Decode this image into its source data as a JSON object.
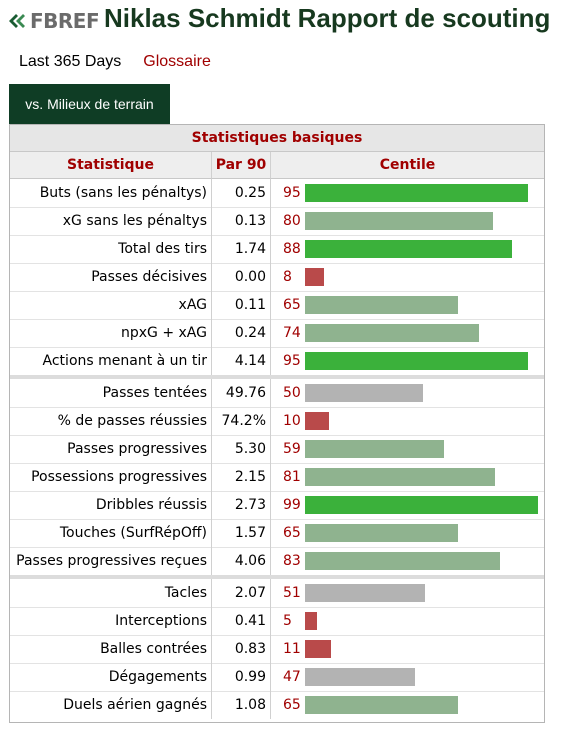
{
  "header": {
    "logo_text": "FBREF",
    "title": "Niklas Schmidt Rapport de scouting"
  },
  "filters": {
    "period": "Last 365 Days",
    "glossary": "Glossaire"
  },
  "tabs": [
    {
      "label": "vs. Milieux de terrain",
      "active": true
    }
  ],
  "table": {
    "section_title": "Statistiques basiques",
    "columns": {
      "stat": "Statistique",
      "per90": "Par 90",
      "percentile": "Centile"
    },
    "colors": {
      "high": "#3bb13b",
      "mid": "#8fb38f",
      "neutral": "#b3b3b3",
      "low": "#b94a4a"
    },
    "groups": [
      [
        {
          "label": "Buts (sans les pénaltys)",
          "per90": "0.25",
          "pct": "95",
          "level": "high"
        },
        {
          "label": "xG sans les pénaltys",
          "per90": "0.13",
          "pct": "80",
          "level": "mid"
        },
        {
          "label": "Total des tirs",
          "per90": "1.74",
          "pct": "88",
          "level": "high"
        },
        {
          "label": "Passes décisives",
          "per90": "0.00",
          "pct": "8",
          "level": "low"
        },
        {
          "label": "xAG",
          "per90": "0.11",
          "pct": "65",
          "level": "mid"
        },
        {
          "label": "npxG + xAG",
          "per90": "0.24",
          "pct": "74",
          "level": "mid"
        },
        {
          "label": "Actions menant à un tir",
          "per90": "4.14",
          "pct": "95",
          "level": "high"
        }
      ],
      [
        {
          "label": "Passes tentées",
          "per90": "49.76",
          "pct": "50",
          "level": "neutral"
        },
        {
          "label": "% de passes réussies",
          "per90": "74.2%",
          "pct": "10",
          "level": "low"
        },
        {
          "label": "Passes progressives",
          "per90": "5.30",
          "pct": "59",
          "level": "mid"
        },
        {
          "label": "Possessions progressives",
          "per90": "2.15",
          "pct": "81",
          "level": "mid"
        },
        {
          "label": "Dribbles réussis",
          "per90": "2.73",
          "pct": "99",
          "level": "high"
        },
        {
          "label": "Touches (SurfRépOff)",
          "per90": "1.57",
          "pct": "65",
          "level": "mid"
        },
        {
          "label": "Passes progressives reçues",
          "per90": "4.06",
          "pct": "83",
          "level": "mid"
        }
      ],
      [
        {
          "label": "Tacles",
          "per90": "2.07",
          "pct": "51",
          "level": "neutral"
        },
        {
          "label": "Interceptions",
          "per90": "0.41",
          "pct": "5",
          "level": "low"
        },
        {
          "label": "Balles contrées",
          "per90": "0.83",
          "pct": "11",
          "level": "low"
        },
        {
          "label": "Dégagements",
          "per90": "0.99",
          "pct": "47",
          "level": "neutral"
        },
        {
          "label": "Duels aérien gagnés",
          "per90": "1.08",
          "pct": "65",
          "level": "mid"
        }
      ]
    ]
  }
}
